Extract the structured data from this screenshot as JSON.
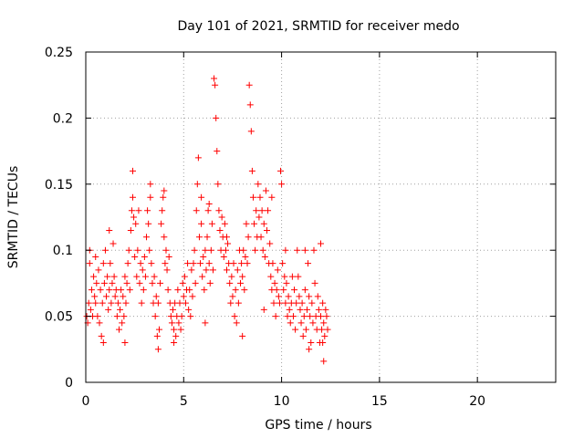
{
  "chart_data": {
    "type": "scatter",
    "title": "Day 101 of 2021, SRMTID for receiver medo",
    "xlabel": "GPS time / hours",
    "ylabel": "SRMTID / TECUs",
    "xlim": [
      0,
      24
    ],
    "ylim": [
      0,
      0.25
    ],
    "xticks": [
      0,
      5,
      10,
      15,
      20
    ],
    "xtick_labels": [
      "0",
      "5",
      "10",
      "15",
      "20"
    ],
    "yticks": [
      0,
      0.05,
      0.1,
      0.15,
      0.2,
      0.25
    ],
    "ytick_labels": [
      "0",
      "0.05",
      "0.1",
      "0.15",
      "0.2",
      "0.25"
    ],
    "grid": true,
    "marker": "+",
    "color": "#ff0000",
    "points": [
      [
        0.05,
        0.05
      ],
      [
        0.1,
        0.045
      ],
      [
        0.15,
        0.06
      ],
      [
        0.2,
        0.09
      ],
      [
        0.25,
        0.055
      ],
      [
        0.3,
        0.07
      ],
      [
        0.35,
        0.05
      ],
      [
        0.4,
        0.08
      ],
      [
        0.45,
        0.065
      ],
      [
        0.5,
        0.06
      ],
      [
        0.55,
        0.075
      ],
      [
        0.6,
        0.05
      ],
      [
        0.65,
        0.085
      ],
      [
        0.7,
        0.045
      ],
      [
        0.75,
        0.07
      ],
      [
        0.8,
        0.035
      ],
      [
        0.85,
        0.06
      ],
      [
        0.9,
        0.09
      ],
      [
        0.95,
        0.075
      ],
      [
        1.0,
        0.1
      ],
      [
        1.05,
        0.065
      ],
      [
        1.1,
        0.08
      ],
      [
        1.15,
        0.055
      ],
      [
        1.2,
        0.07
      ],
      [
        1.25,
        0.09
      ],
      [
        1.3,
        0.06
      ],
      [
        1.35,
        0.075
      ],
      [
        1.4,
        0.105
      ],
      [
        1.45,
        0.08
      ],
      [
        1.5,
        0.065
      ],
      [
        1.55,
        0.07
      ],
      [
        1.6,
        0.05
      ],
      [
        1.65,
        0.06
      ],
      [
        1.7,
        0.04
      ],
      [
        1.75,
        0.055
      ],
      [
        1.8,
        0.07
      ],
      [
        1.85,
        0.045
      ],
      [
        1.9,
        0.065
      ],
      [
        1.95,
        0.05
      ],
      [
        2.0,
        0.08
      ],
      [
        2.05,
        0.06
      ],
      [
        2.1,
        0.075
      ],
      [
        2.15,
        0.09
      ],
      [
        2.2,
        0.1
      ],
      [
        2.25,
        0.07
      ],
      [
        2.3,
        0.115
      ],
      [
        2.35,
        0.13
      ],
      [
        2.4,
        0.16
      ],
      [
        2.45,
        0.125
      ],
      [
        2.5,
        0.095
      ],
      [
        2.55,
        0.12
      ],
      [
        2.6,
        0.08
      ],
      [
        2.65,
        0.1
      ],
      [
        2.7,
        0.13
      ],
      [
        2.75,
        0.075
      ],
      [
        2.8,
        0.09
      ],
      [
        2.85,
        0.06
      ],
      [
        2.9,
        0.085
      ],
      [
        2.95,
        0.07
      ],
      [
        3.0,
        0.095
      ],
      [
        3.05,
        0.08
      ],
      [
        3.1,
        0.11
      ],
      [
        3.15,
        0.13
      ],
      [
        3.2,
        0.12
      ],
      [
        3.25,
        0.1
      ],
      [
        3.3,
        0.15
      ],
      [
        3.35,
        0.09
      ],
      [
        3.4,
        0.075
      ],
      [
        3.45,
        0.06
      ],
      [
        3.5,
        0.08
      ],
      [
        3.55,
        0.05
      ],
      [
        3.6,
        0.065
      ],
      [
        3.65,
        0.035
      ],
      [
        3.7,
        0.06
      ],
      [
        3.75,
        0.04
      ],
      [
        3.8,
        0.075
      ],
      [
        3.85,
        0.12
      ],
      [
        3.9,
        0.13
      ],
      [
        3.95,
        0.14
      ],
      [
        4.0,
        0.11
      ],
      [
        4.05,
        0.09
      ],
      [
        4.1,
        0.1
      ],
      [
        4.15,
        0.085
      ],
      [
        4.2,
        0.07
      ],
      [
        4.25,
        0.095
      ],
      [
        4.3,
        0.06
      ],
      [
        4.35,
        0.05
      ],
      [
        4.4,
        0.045
      ],
      [
        4.45,
        0.055
      ],
      [
        4.5,
        0.04
      ],
      [
        4.55,
        0.06
      ],
      [
        4.6,
        0.035
      ],
      [
        4.65,
        0.05
      ],
      [
        4.7,
        0.07
      ],
      [
        4.75,
        0.045
      ],
      [
        4.8,
        0.06
      ],
      [
        4.85,
        0.04
      ],
      [
        4.9,
        0.05
      ],
      [
        4.95,
        0.075
      ],
      [
        5.0,
        0.065
      ],
      [
        5.05,
        0.08
      ],
      [
        5.1,
        0.06
      ],
      [
        5.15,
        0.07
      ],
      [
        5.2,
        0.09
      ],
      [
        5.25,
        0.055
      ],
      [
        5.3,
        0.07
      ],
      [
        5.35,
        0.05
      ],
      [
        5.4,
        0.085
      ],
      [
        5.45,
        0.065
      ],
      [
        5.5,
        0.09
      ],
      [
        5.55,
        0.1
      ],
      [
        5.6,
        0.075
      ],
      [
        5.65,
        0.13
      ],
      [
        5.7,
        0.15
      ],
      [
        5.75,
        0.17
      ],
      [
        5.8,
        0.11
      ],
      [
        5.85,
        0.09
      ],
      [
        5.9,
        0.12
      ],
      [
        5.95,
        0.08
      ],
      [
        6.0,
        0.095
      ],
      [
        6.05,
        0.07
      ],
      [
        6.1,
        0.1
      ],
      [
        6.15,
        0.085
      ],
      [
        6.2,
        0.11
      ],
      [
        6.25,
        0.13
      ],
      [
        6.3,
        0.09
      ],
      [
        6.35,
        0.075
      ],
      [
        6.4,
        0.1
      ],
      [
        6.45,
        0.12
      ],
      [
        6.5,
        0.085
      ],
      [
        6.55,
        0.23
      ],
      [
        6.6,
        0.225
      ],
      [
        6.65,
        0.2
      ],
      [
        6.7,
        0.175
      ],
      [
        6.75,
        0.15
      ],
      [
        6.8,
        0.13
      ],
      [
        6.85,
        0.115
      ],
      [
        6.9,
        0.1
      ],
      [
        6.95,
        0.125
      ],
      [
        7.0,
        0.11
      ],
      [
        7.05,
        0.095
      ],
      [
        7.1,
        0.12
      ],
      [
        7.15,
        0.1
      ],
      [
        7.2,
        0.085
      ],
      [
        7.25,
        0.105
      ],
      [
        7.3,
        0.09
      ],
      [
        7.35,
        0.075
      ],
      [
        7.4,
        0.06
      ],
      [
        7.45,
        0.08
      ],
      [
        7.5,
        0.065
      ],
      [
        7.55,
        0.09
      ],
      [
        7.6,
        0.05
      ],
      [
        7.65,
        0.07
      ],
      [
        7.7,
        0.045
      ],
      [
        7.75,
        0.085
      ],
      [
        7.8,
        0.06
      ],
      [
        7.85,
        0.1
      ],
      [
        7.9,
        0.075
      ],
      [
        7.95,
        0.09
      ],
      [
        8.0,
        0.08
      ],
      [
        8.05,
        0.1
      ],
      [
        8.1,
        0.07
      ],
      [
        8.15,
        0.095
      ],
      [
        8.2,
        0.12
      ],
      [
        8.25,
        0.09
      ],
      [
        8.3,
        0.11
      ],
      [
        8.35,
        0.225
      ],
      [
        8.4,
        0.21
      ],
      [
        8.45,
        0.19
      ],
      [
        8.5,
        0.16
      ],
      [
        8.55,
        0.14
      ],
      [
        8.6,
        0.12
      ],
      [
        8.65,
        0.1
      ],
      [
        8.7,
        0.13
      ],
      [
        8.75,
        0.11
      ],
      [
        8.8,
        0.15
      ],
      [
        8.85,
        0.125
      ],
      [
        8.9,
        0.14
      ],
      [
        8.95,
        0.11
      ],
      [
        9.0,
        0.13
      ],
      [
        9.05,
        0.1
      ],
      [
        9.1,
        0.12
      ],
      [
        9.15,
        0.095
      ],
      [
        9.2,
        0.145
      ],
      [
        9.25,
        0.115
      ],
      [
        9.3,
        0.13
      ],
      [
        9.35,
        0.09
      ],
      [
        9.4,
        0.105
      ],
      [
        9.45,
        0.08
      ],
      [
        9.5,
        0.07
      ],
      [
        9.55,
        0.09
      ],
      [
        9.6,
        0.06
      ],
      [
        9.65,
        0.075
      ],
      [
        9.7,
        0.05
      ],
      [
        9.75,
        0.07
      ],
      [
        9.8,
        0.085
      ],
      [
        9.85,
        0.065
      ],
      [
        9.9,
        0.06
      ],
      [
        9.95,
        0.16
      ],
      [
        10.0,
        0.15
      ],
      [
        10.05,
        0.09
      ],
      [
        10.1,
        0.07
      ],
      [
        10.15,
        0.08
      ],
      [
        10.2,
        0.06
      ],
      [
        10.25,
        0.075
      ],
      [
        10.3,
        0.05
      ],
      [
        10.35,
        0.065
      ],
      [
        10.4,
        0.055
      ],
      [
        10.45,
        0.045
      ],
      [
        10.5,
        0.06
      ],
      [
        10.55,
        0.08
      ],
      [
        10.6,
        0.05
      ],
      [
        10.65,
        0.07
      ],
      [
        10.7,
        0.04
      ],
      [
        10.75,
        0.06
      ],
      [
        10.8,
        0.1
      ],
      [
        10.85,
        0.08
      ],
      [
        10.9,
        0.065
      ],
      [
        10.95,
        0.055
      ],
      [
        11.0,
        0.045
      ],
      [
        11.05,
        0.06
      ],
      [
        11.1,
        0.035
      ],
      [
        11.15,
        0.05
      ],
      [
        11.2,
        0.07
      ],
      [
        11.25,
        0.04
      ],
      [
        11.3,
        0.055
      ],
      [
        11.35,
        0.09
      ],
      [
        11.4,
        0.065
      ],
      [
        11.45,
        0.05
      ],
      [
        11.5,
        0.03
      ],
      [
        11.55,
        0.06
      ],
      [
        11.6,
        0.045
      ],
      [
        11.65,
        0.1
      ],
      [
        11.7,
        0.075
      ],
      [
        11.75,
        0.05
      ],
      [
        11.8,
        0.04
      ],
      [
        11.85,
        0.065
      ],
      [
        11.9,
        0.055
      ],
      [
        11.95,
        0.03
      ],
      [
        12.0,
        0.05
      ],
      [
        12.05,
        0.04
      ],
      [
        12.1,
        0.06
      ],
      [
        12.15,
        0.045
      ],
      [
        12.2,
        0.035
      ],
      [
        12.25,
        0.055
      ],
      [
        12.3,
        0.05
      ],
      [
        12.35,
        0.04
      ],
      [
        12.15,
        0.016
      ],
      [
        0.2,
        0.1
      ],
      [
        0.5,
        0.095
      ],
      [
        1.2,
        0.115
      ],
      [
        2.4,
        0.14
      ],
      [
        3.3,
        0.14
      ],
      [
        4.0,
        0.145
      ],
      [
        5.9,
        0.14
      ],
      [
        6.3,
        0.135
      ],
      [
        7.2,
        0.11
      ],
      [
        9.5,
        0.14
      ],
      [
        10.2,
        0.1
      ],
      [
        11.2,
        0.1
      ],
      [
        12.0,
        0.105
      ],
      [
        0.9,
        0.03
      ],
      [
        4.5,
        0.03
      ],
      [
        8.0,
        0.035
      ],
      [
        3.7,
        0.025
      ],
      [
        11.4,
        0.025
      ],
      [
        2.0,
        0.03
      ],
      [
        6.1,
        0.045
      ],
      [
        9.1,
        0.055
      ],
      [
        12.1,
        0.03
      ]
    ]
  }
}
